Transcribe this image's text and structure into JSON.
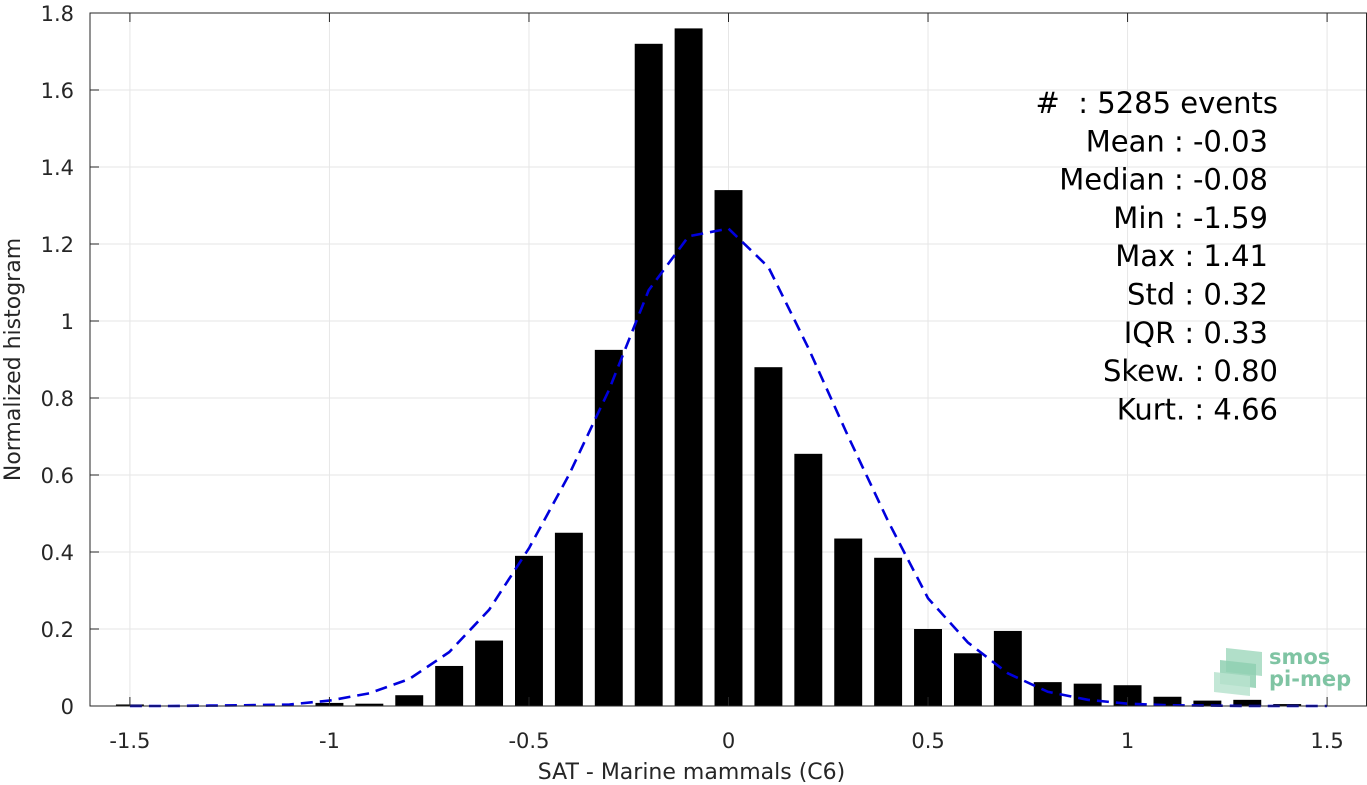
{
  "chart_data": {
    "type": "bar",
    "xlabel": "SAT - Marine mammals (C6)",
    "ylabel": "Normalized histogram",
    "xlim": [
      -1.6,
      1.6
    ],
    "ylim": [
      0,
      1.8
    ],
    "grid": true,
    "xticks": [
      -1.5,
      -1,
      -0.5,
      0,
      0.5,
      1,
      1.5
    ],
    "xtick_labels": [
      "-1.5",
      "-1",
      "-0.5",
      "0",
      "0.5",
      "1",
      "1.5"
    ],
    "yticks": [
      0,
      0.2,
      0.4,
      0.6,
      0.8,
      1,
      1.2,
      1.4,
      1.6,
      1.8
    ],
    "ytick_labels": [
      "0",
      "0.2",
      "0.4",
      "0.6",
      "0.8",
      "1",
      "1.2",
      "1.4",
      "1.6",
      "1.8"
    ],
    "bin_width": 0.1,
    "bar_color": "#000000",
    "bins": [
      {
        "x": -1.5,
        "y": 0.004
      },
      {
        "x": -1.4,
        "y": 0.0
      },
      {
        "x": -1.3,
        "y": 0.0
      },
      {
        "x": -1.2,
        "y": 0.0
      },
      {
        "x": -1.1,
        "y": 0.0
      },
      {
        "x": -1.0,
        "y": 0.008
      },
      {
        "x": -0.9,
        "y": 0.006
      },
      {
        "x": -0.8,
        "y": 0.028
      },
      {
        "x": -0.7,
        "y": 0.104
      },
      {
        "x": -0.6,
        "y": 0.17
      },
      {
        "x": -0.5,
        "y": 0.39
      },
      {
        "x": -0.4,
        "y": 0.45
      },
      {
        "x": -0.3,
        "y": 0.925
      },
      {
        "x": -0.2,
        "y": 1.72
      },
      {
        "x": -0.1,
        "y": 1.76
      },
      {
        "x": 0.0,
        "y": 1.34
      },
      {
        "x": 0.1,
        "y": 0.88
      },
      {
        "x": 0.2,
        "y": 0.655
      },
      {
        "x": 0.3,
        "y": 0.435
      },
      {
        "x": 0.4,
        "y": 0.385
      },
      {
        "x": 0.5,
        "y": 0.2
      },
      {
        "x": 0.6,
        "y": 0.137
      },
      {
        "x": 0.7,
        "y": 0.195
      },
      {
        "x": 0.8,
        "y": 0.062
      },
      {
        "x": 0.9,
        "y": 0.058
      },
      {
        "x": 1.0,
        "y": 0.054
      },
      {
        "x": 1.1,
        "y": 0.024
      },
      {
        "x": 1.2,
        "y": 0.014
      },
      {
        "x": 1.3,
        "y": 0.016
      },
      {
        "x": 1.4,
        "y": 0.005
      }
    ],
    "fit_curve": {
      "color": "#0000dd",
      "style": "dashed",
      "points": [
        [
          -1.5,
          0.0
        ],
        [
          -1.4,
          0.0
        ],
        [
          -1.3,
          0.001
        ],
        [
          -1.2,
          0.002
        ],
        [
          -1.1,
          0.004
        ],
        [
          -1.0,
          0.014
        ],
        [
          -0.9,
          0.033
        ],
        [
          -0.8,
          0.07
        ],
        [
          -0.7,
          0.14
        ],
        [
          -0.6,
          0.25
        ],
        [
          -0.5,
          0.41
        ],
        [
          -0.4,
          0.6
        ],
        [
          -0.3,
          0.82
        ],
        [
          -0.2,
          1.08
        ],
        [
          -0.1,
          1.22
        ],
        [
          0.0,
          1.24
        ],
        [
          0.1,
          1.14
        ],
        [
          0.2,
          0.93
        ],
        [
          0.3,
          0.7
        ],
        [
          0.4,
          0.48
        ],
        [
          0.5,
          0.28
        ],
        [
          0.6,
          0.165
        ],
        [
          0.7,
          0.085
        ],
        [
          0.8,
          0.037
        ],
        [
          0.9,
          0.016
        ],
        [
          1.0,
          0.006
        ],
        [
          1.1,
          0.002
        ],
        [
          1.2,
          0.001
        ],
        [
          1.3,
          0.0
        ],
        [
          1.4,
          0.0
        ],
        [
          1.5,
          0.0
        ]
      ]
    },
    "annotations": [
      "#  : 5285 events",
      "Mean : -0.03",
      "Median : -0.08",
      "Min : -1.59",
      "Max : 1.41",
      "Std : 0.32",
      "IQR : 0.33",
      "Skew. : 0.80",
      "Kurt. : 4.66"
    ]
  },
  "logo": {
    "line1": "smos",
    "line2": "pi-mep",
    "color": "#7fc4a3"
  }
}
